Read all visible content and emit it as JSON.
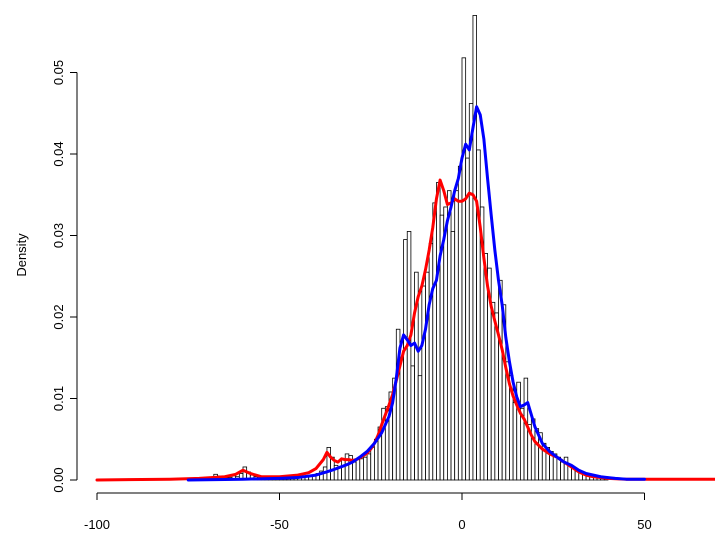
{
  "chart_data": {
    "type": "histogram",
    "title": "",
    "xlabel": "",
    "ylabel": "Density",
    "xlim": [
      -100,
      70
    ],
    "ylim": [
      0,
      0.057
    ],
    "x_ticks": [
      -100,
      -50,
      0,
      50
    ],
    "x_tick_labels": [
      "-100",
      "-50",
      "0",
      "50"
    ],
    "y_ticks": [
      0.0,
      0.01,
      0.02,
      0.03,
      0.04,
      0.05
    ],
    "y_tick_labels": [
      "0.00",
      "0.01",
      "0.02",
      "0.03",
      "0.04",
      "0.05"
    ],
    "grid": false,
    "legend": "none",
    "histogram": {
      "bin_width": 1,
      "bins": [
        [
          -68,
          0.0007
        ],
        [
          -67,
          0.0005
        ],
        [
          -66,
          0.0004
        ],
        [
          -65,
          0.0003
        ],
        [
          -64,
          0.0003
        ],
        [
          -63,
          0.0005
        ],
        [
          -62,
          0.0004
        ],
        [
          -61,
          0.0008
        ],
        [
          -60,
          0.0016
        ],
        [
          -59,
          0.001
        ],
        [
          -58,
          0.0006
        ],
        [
          -57,
          0.0004
        ],
        [
          -56,
          0.0003
        ],
        [
          -55,
          0.0003
        ],
        [
          -54,
          0.0003
        ],
        [
          -53,
          0.0003
        ],
        [
          -52,
          0.0003
        ],
        [
          -51,
          0.0003
        ],
        [
          -50,
          0.0004
        ],
        [
          -49,
          0.0004
        ],
        [
          -48,
          0.0003
        ],
        [
          -47,
          0.0004
        ],
        [
          -46,
          0.0003
        ],
        [
          -45,
          0.0003
        ],
        [
          -44,
          0.0004
        ],
        [
          -43,
          0.0005
        ],
        [
          -42,
          0.0005
        ],
        [
          -41,
          0.0006
        ],
        [
          -40,
          0.0008
        ],
        [
          -39,
          0.0011
        ],
        [
          -38,
          0.0016
        ],
        [
          -37,
          0.004
        ],
        [
          -36,
          0.0028
        ],
        [
          -35,
          0.0018
        ],
        [
          -34,
          0.0016
        ],
        [
          -33,
          0.0025
        ],
        [
          -32,
          0.0032
        ],
        [
          -31,
          0.003
        ],
        [
          -30,
          0.0022
        ],
        [
          -29,
          0.0025
        ],
        [
          -28,
          0.0026
        ],
        [
          -27,
          0.0028
        ],
        [
          -26,
          0.0032
        ],
        [
          -25,
          0.004
        ],
        [
          -24,
          0.005
        ],
        [
          -23,
          0.0065
        ],
        [
          -22,
          0.0088
        ],
        [
          -21,
          0.009
        ],
        [
          -20,
          0.0108
        ],
        [
          -19,
          0.0125
        ],
        [
          -18,
          0.0185
        ],
        [
          -17,
          0.017
        ],
        [
          -16,
          0.0295
        ],
        [
          -15,
          0.0305
        ],
        [
          -14,
          0.014
        ],
        [
          -13,
          0.0255
        ],
        [
          -12,
          0.0128
        ],
        [
          -11,
          0.0238
        ],
        [
          -10,
          0.0255
        ],
        [
          -9,
          0.029
        ],
        [
          -8,
          0.034
        ],
        [
          -7,
          0.0365
        ],
        [
          -6,
          0.0325
        ],
        [
          -5,
          0.0335
        ],
        [
          -4,
          0.0355
        ],
        [
          -3,
          0.0305
        ],
        [
          -2,
          0.0355
        ],
        [
          -1,
          0.0385
        ],
        [
          0,
          0.0518
        ],
        [
          1,
          0.0395
        ],
        [
          2,
          0.0462
        ],
        [
          3,
          0.057
        ],
        [
          4,
          0.0405
        ],
        [
          5,
          0.0335
        ],
        [
          6,
          0.0278
        ],
        [
          7,
          0.026
        ],
        [
          8,
          0.0218
        ],
        [
          9,
          0.0205
        ],
        [
          10,
          0.0245
        ],
        [
          11,
          0.0215
        ],
        [
          12,
          0.0145
        ],
        [
          13,
          0.0128
        ],
        [
          14,
          0.0095
        ],
        [
          15,
          0.012
        ],
        [
          16,
          0.0088
        ],
        [
          17,
          0.0125
        ],
        [
          18,
          0.0068
        ],
        [
          19,
          0.0075
        ],
        [
          20,
          0.0063
        ],
        [
          21,
          0.0058
        ],
        [
          22,
          0.0045
        ],
        [
          23,
          0.004
        ],
        [
          24,
          0.0035
        ],
        [
          25,
          0.0032
        ],
        [
          26,
          0.0028
        ],
        [
          27,
          0.0022
        ],
        [
          28,
          0.0028
        ],
        [
          29,
          0.0018
        ],
        [
          30,
          0.0015
        ],
        [
          31,
          0.0012
        ],
        [
          32,
          0.001
        ],
        [
          33,
          0.0008
        ],
        [
          34,
          0.0007
        ],
        [
          35,
          0.0006
        ],
        [
          36,
          0.0005
        ],
        [
          37,
          0.0004
        ],
        [
          38,
          0.0003
        ],
        [
          39,
          0.0004
        ]
      ]
    },
    "series": [
      {
        "color": "#ff0000",
        "x": [
          -100,
          -80,
          -72,
          -65,
          -62,
          -60,
          -58,
          -55,
          -50,
          -45,
          -42,
          -40,
          -38,
          -37,
          -36,
          -35,
          -34,
          -33,
          -32,
          -31,
          -30,
          -29,
          -28,
          -27,
          -26,
          -25,
          -24,
          -23,
          -22,
          -21,
          -20,
          -19,
          -18,
          -17,
          -16,
          -15,
          -14,
          -13,
          -12,
          -11,
          -10,
          -9,
          -8,
          -7,
          -6,
          -5,
          -4,
          -3,
          -2,
          -1,
          0,
          1,
          2,
          3,
          4,
          5,
          6,
          7,
          8,
          9,
          10,
          11,
          12,
          13,
          14,
          15,
          16,
          17,
          18,
          19,
          20,
          22,
          24,
          26,
          28,
          30,
          32,
          34,
          36,
          38,
          40,
          45,
          50,
          60,
          70
        ],
        "y": [
          0.0,
          0.0001,
          0.0002,
          0.0004,
          0.0007,
          0.0012,
          0.0008,
          0.0004,
          0.0004,
          0.0006,
          0.0009,
          0.0014,
          0.0025,
          0.0034,
          0.0028,
          0.0024,
          0.0022,
          0.0026,
          0.0025,
          0.0025,
          0.0024,
          0.0025,
          0.0027,
          0.003,
          0.0033,
          0.0038,
          0.0045,
          0.0055,
          0.0068,
          0.008,
          0.0092,
          0.0105,
          0.0122,
          0.014,
          0.0158,
          0.0165,
          0.0178,
          0.0205,
          0.0225,
          0.0238,
          0.0258,
          0.0282,
          0.031,
          0.0345,
          0.0368,
          0.0355,
          0.0338,
          0.034,
          0.0345,
          0.0342,
          0.0342,
          0.0345,
          0.0352,
          0.035,
          0.0342,
          0.031,
          0.0272,
          0.0238,
          0.0213,
          0.0195,
          0.0178,
          0.016,
          0.0138,
          0.0118,
          0.0103,
          0.0092,
          0.0082,
          0.0075,
          0.0065,
          0.0055,
          0.0047,
          0.0038,
          0.0032,
          0.0028,
          0.0022,
          0.0016,
          0.001,
          0.0006,
          0.0004,
          0.0003,
          0.0002,
          0.0001,
          0.0001,
          0.0001,
          0.0001
        ]
      },
      {
        "color": "#0000ff",
        "x": [
          -75,
          -60,
          -50,
          -45,
          -40,
          -37,
          -35,
          -32,
          -30,
          -28,
          -26,
          -24,
          -22,
          -20,
          -19,
          -18,
          -17,
          -16,
          -15,
          -14,
          -13,
          -12,
          -11,
          -10,
          -9,
          -8,
          -7,
          -6,
          -5,
          -4,
          -3,
          -2,
          -1,
          0,
          1,
          2,
          3,
          4,
          5,
          6,
          7,
          8,
          9,
          10,
          11,
          12,
          13,
          14,
          15,
          16,
          17,
          18,
          19,
          20,
          22,
          24,
          26,
          28,
          30,
          32,
          34,
          36,
          38,
          40,
          42,
          45,
          50
        ],
        "y": [
          0.0,
          0.0001,
          0.0002,
          0.0003,
          0.0006,
          0.001,
          0.0013,
          0.0018,
          0.0022,
          0.0028,
          0.0035,
          0.0045,
          0.0058,
          0.0078,
          0.0095,
          0.0125,
          0.0162,
          0.0178,
          0.0172,
          0.0165,
          0.0168,
          0.0158,
          0.0165,
          0.0185,
          0.0215,
          0.0235,
          0.0245,
          0.0275,
          0.0295,
          0.0318,
          0.0335,
          0.0355,
          0.037,
          0.0395,
          0.0412,
          0.0405,
          0.0432,
          0.0458,
          0.0448,
          0.0418,
          0.037,
          0.0325,
          0.0282,
          0.0245,
          0.0215,
          0.0175,
          0.0145,
          0.012,
          0.0102,
          0.009,
          0.0092,
          0.0095,
          0.008,
          0.0065,
          0.0045,
          0.0035,
          0.0028,
          0.0022,
          0.0018,
          0.0012,
          0.0008,
          0.0006,
          0.0004,
          0.0003,
          0.0002,
          0.0001,
          0.0001
        ]
      }
    ]
  }
}
